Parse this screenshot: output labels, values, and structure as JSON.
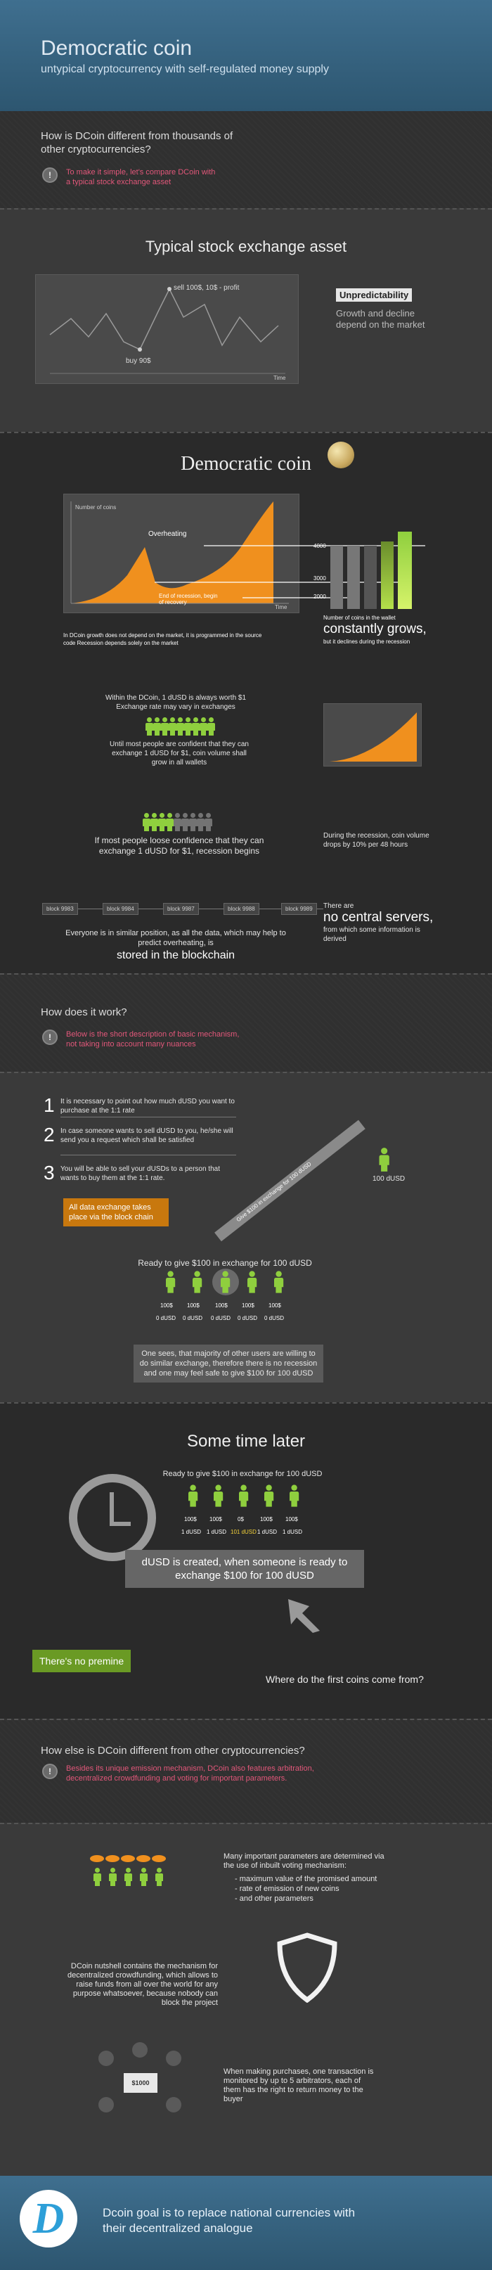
{
  "header": {
    "title": "Democratic coin",
    "subtitle": "untypical cryptocurrency with self-regulated money supply"
  },
  "intro": {
    "question": "How is DCoin different from thousands of other cryptocurrencies?",
    "icon_label": "!",
    "hint": "To make it simple, let's compare DCoin with a typical stock exchange asset"
  },
  "stock": {
    "title": "Typical stock exchange asset",
    "sell_label": "sell 100$, 10$ - profit",
    "buy_label": "buy 90$",
    "axis_label": "Time",
    "tag": "Unpredictability",
    "tag_text": "Growth and decline depend on the market"
  },
  "dcoin": {
    "title": "Democratic coin",
    "y_label": "Number of coins",
    "overheating": "Overheating",
    "recession": "End of recession, begin of recovery",
    "time": "Time",
    "bar_labels": [
      "4000",
      "3000",
      "2000"
    ],
    "grows_note": "Number of coins in the wallet",
    "grows_big": "constantly grows,",
    "grows_tail": "but it declines during the recession",
    "source_note": "In DCoin growth does not depend on the market, it is programmed in the source code Recession depends solely on the market",
    "worth_note": "Within the DCoin, 1 dUSD is always worth $1 Exchange rate may vary in exchanges",
    "confident_note": "Until most people are confident that they can exchange 1 dUSD for $1, coin volume shall grow in all wallets",
    "loose_note": "If most people loose confidence that they can exchange 1 dUSD for $1, recession begins",
    "recession_note": "During the recession, coin volume drops by 10% per 48 hours",
    "blocks": [
      "block 9983",
      "block 9984",
      "block 9987",
      "block 9988",
      "block 9989"
    ],
    "servers_small": "There are",
    "servers_big": "no central servers,",
    "servers_tail": "from which some information is derived",
    "blockchain_note": "Everyone is in similar position, as all the data, which may help to predict overheating, is",
    "blockchain_big": "stored in the blockchain"
  },
  "how": {
    "question": "How does it work?",
    "icon_label": "!",
    "hint": "Below is the short description of basic mechanism, not taking into account many nuances"
  },
  "steps": {
    "items": [
      {
        "num": "1",
        "text": "It is necessary to point out how much dUSD you want to purchase at the 1:1 rate"
      },
      {
        "num": "2",
        "text": "In case someone wants to sell dUSD to you, he/she will send you a request which shall be satisfied"
      },
      {
        "num": "3",
        "text": "You will be able to sell your dUSDs to a person that wants to buy them at the 1:1 rate."
      }
    ],
    "exchange_tag": "All data exchange takes place via the block chain",
    "give_label": "Give $100 in exchange for 100 dUSD",
    "person_label": "100 dUSD",
    "ready_label": "Ready to give $100 in exchange for 100 dUSD",
    "amounts": [
      "100$",
      "100$",
      "100$",
      "100$",
      "100$"
    ],
    "dusd": [
      "0 dUSD",
      "0 dUSD",
      "0 dUSD",
      "0 dUSD",
      "0 dUSD"
    ],
    "majority_note": "One sees, that majority of other users are willing to do similar exchange, therefore there is no recession and one may feel safe to give $100 for 100 dUSD"
  },
  "later": {
    "title": "Some time later",
    "ready_label": "Ready to give $100 in exchange for 100 dUSD",
    "amounts": [
      "100$",
      "100$",
      "0$",
      "100$",
      "100$"
    ],
    "dusd": [
      "1 dUSD",
      "1 dUSD",
      "101 dUSD",
      "1 dUSD",
      "1 dUSD"
    ],
    "created_note": "dUSD is created, when someone is ready to exchange $100 for 100 dUSD",
    "premine": "There's no premine",
    "first_coins": "Where do the first coins come from?"
  },
  "else": {
    "question": "How else is DCoin different from other cryptocurrencies?",
    "icon_label": "!",
    "hint": "Besides its unique emission mechanism, DCoin also features arbitration, decentralized crowdfunding and voting for important parameters."
  },
  "features": {
    "voting_title": "Many important parameters are determined via the use of inbuilt voting mechanism:",
    "voting_items": [
      "- maximum value of the promised amount",
      "- rate of emission of new coins",
      "- and other parameters"
    ],
    "crowdfunding": "DCoin nutshell contains the mechanism for decentralized crowdfunding, which allows to raise funds from all over the world for any purpose whatsoever, because nobody can block the project",
    "arbitration": "When making purchases, one transaction is monitored by up to 5 arbitrators, each of them has the right to return money to the buyer",
    "chest_label": "$1000"
  },
  "footer": {
    "logo_letter": "D",
    "goal": "Dcoin goal is to replace national currencies with their decentralized analogue"
  },
  "colors": {
    "accent_blue": "#2d9fd8",
    "green": "#8fcf3e",
    "orange": "#f0901e",
    "pink": "#e2577a"
  }
}
